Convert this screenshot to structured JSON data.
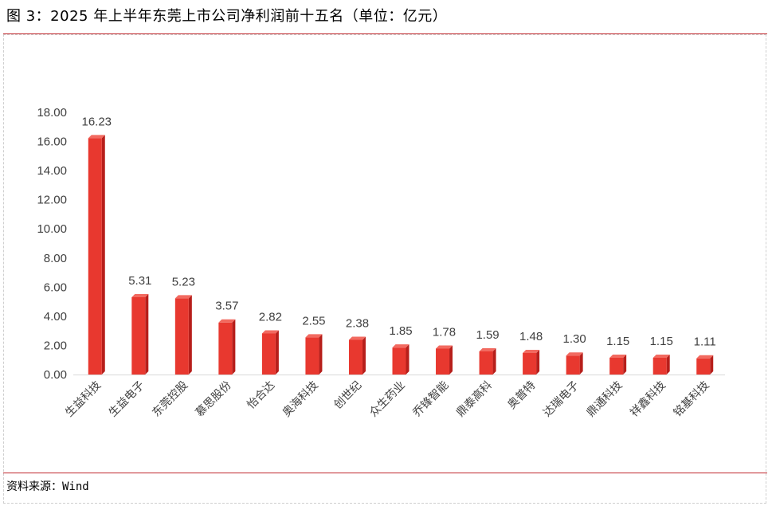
{
  "header": {
    "title": "图 3：2025 年上半年东莞上市公司净利润前十五名（单位：亿元）"
  },
  "footer": {
    "source": "资料来源：Wind"
  },
  "colors": {
    "bar_front": "#e8382f",
    "bar_side": "#b71f1b",
    "bar_top": "#f26a60",
    "rule": "#c0272d",
    "axis": "#d9d9d9"
  },
  "chart_data": {
    "type": "bar",
    "title": "",
    "xlabel": "",
    "ylabel": "",
    "ylim": [
      0,
      18
    ],
    "yticks": [
      "0.00",
      "2.00",
      "4.00",
      "6.00",
      "8.00",
      "10.00",
      "12.00",
      "14.00",
      "16.00",
      "18.00"
    ],
    "grid": false,
    "categories": [
      "生益科技",
      "生益电子",
      "东莞控股",
      "慕思股份",
      "怡合达",
      "奥海科技",
      "创世纪",
      "众生药业",
      "乔锋智能",
      "鼎泰高科",
      "奥普特",
      "达瑞电子",
      "鼎通科技",
      "祥鑫科技",
      "铭基科技"
    ],
    "values": [
      16.23,
      5.31,
      5.23,
      3.57,
      2.82,
      2.55,
      2.38,
      1.85,
      1.78,
      1.59,
      1.48,
      1.3,
      1.15,
      1.15,
      1.11
    ],
    "data_labels": [
      "16.23",
      "5.31",
      "5.23",
      "3.57",
      "2.82",
      "2.55",
      "2.38",
      "1.85",
      "1.78",
      "1.59",
      "1.48",
      "1.30",
      "1.15",
      "1.15",
      "1.11"
    ]
  }
}
